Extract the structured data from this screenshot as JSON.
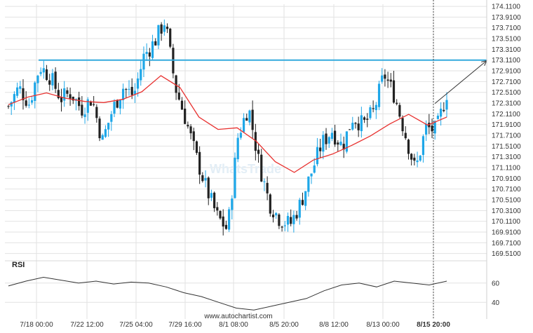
{
  "chart_data": {
    "type": "candlestick",
    "y_ticks": [
      "174.1100",
      "173.9100",
      "173.7100",
      "173.5100",
      "173.3100",
      "173.1100",
      "172.9100",
      "172.7100",
      "172.5100",
      "172.3100",
      "172.1100",
      "171.9100",
      "171.7100",
      "171.5100",
      "171.3100",
      "171.1100",
      "170.9100",
      "170.7100",
      "170.5100",
      "170.3100",
      "170.1100",
      "169.9100",
      "169.7100",
      "169.5100"
    ],
    "ylim": [
      169.44,
      174.15
    ],
    "x_ticks": [
      "7/18 00:00",
      "7/22 12:00",
      "7/25 04:00",
      "7/29 16:00",
      "8/1 08:00",
      "8/5 20:00",
      "8/8 12:00",
      "8/13 00:00",
      "8/15 20:00"
    ],
    "highlight_tick": "8/15 20:00",
    "resistance_level": 173.11,
    "price_path": [
      172.25,
      172.6,
      172.3,
      173.0,
      172.8,
      172.4,
      172.5,
      172.2,
      172.4,
      171.6,
      172.2,
      172.6,
      172.45,
      173.2,
      173.45,
      173.85,
      172.6,
      172.0,
      171.3,
      170.7,
      170.2,
      169.95,
      171.7,
      172.25,
      171.2,
      170.45,
      170.15,
      170.05,
      170.45,
      171.0,
      171.55,
      171.8,
      171.5,
      172.05,
      171.9,
      172.15,
      172.85,
      172.45,
      171.75,
      171.05,
      171.85,
      171.8,
      172.5
    ],
    "moving_average": [
      172.28,
      172.42,
      172.5,
      172.4,
      172.34,
      172.32,
      172.38,
      172.52,
      172.82,
      172.6,
      172.05,
      171.82,
      171.85,
      171.6,
      171.22,
      171.02,
      171.25,
      171.36,
      171.52,
      171.7,
      171.92,
      172.1,
      171.9,
      172.05
    ],
    "projection": {
      "from": 172.3,
      "to": 173.1
    },
    "rsi": {
      "label": "RSI",
      "ticks": [
        "60",
        "40"
      ],
      "ylim": [
        30,
        70
      ],
      "values": [
        57,
        62,
        66,
        63,
        60,
        62,
        59,
        61,
        60,
        56,
        50,
        46,
        40,
        34,
        32,
        36,
        40,
        44,
        52,
        58,
        60,
        56,
        62,
        60,
        58,
        62
      ]
    },
    "watermark": "WhatsTrade",
    "source_url": "www.autochartist.com"
  },
  "colors": {
    "bull": "#1ea7e8",
    "bear": "#222222",
    "resistance": "#33aadd",
    "moving_average": "#e8312f",
    "rsi_line": "#333333",
    "grid": "#e2e2e2"
  }
}
